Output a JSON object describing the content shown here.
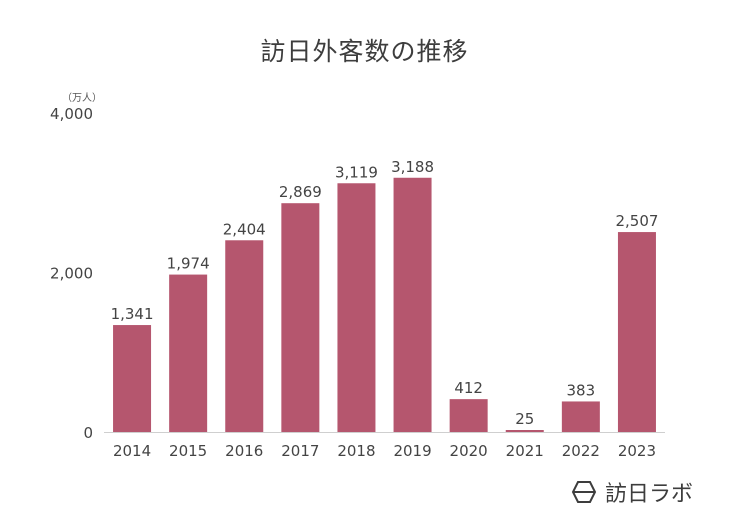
{
  "chart_data": {
    "type": "bar",
    "title": "訪日外客数の推移",
    "unit": "（万人）",
    "categories": [
      "2014",
      "2015",
      "2016",
      "2017",
      "2018",
      "2019",
      "2020",
      "2021",
      "2022",
      "2023"
    ],
    "values": [
      1341,
      1974,
      2404,
      2869,
      3119,
      3188,
      412,
      25,
      383,
      2507
    ],
    "value_labels": [
      "1,341",
      "1,974",
      "2,404",
      "2,869",
      "3,119",
      "3,188",
      "412",
      "25",
      "383",
      "2,507"
    ],
    "y_ticks": [
      0,
      2000,
      4000
    ],
    "y_tick_labels": [
      "0",
      "2,000",
      "4,000"
    ],
    "ylim": [
      0,
      4000
    ],
    "bar_color": "#b5566e",
    "grid": false
  },
  "brand": {
    "name": "訪日ラボ",
    "icon": "hexagon-logo-icon"
  }
}
